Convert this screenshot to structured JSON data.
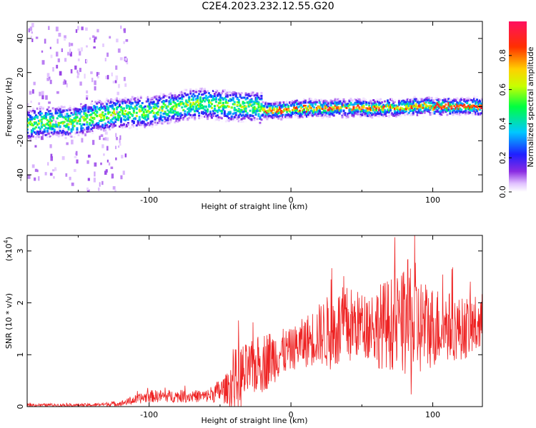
{
  "title": "C2E4.2023.232.12.55.G20",
  "colors": {
    "snr_line": "#ee2222",
    "axis": "#000000"
  },
  "chart_data": [
    {
      "type": "heatmap",
      "xlabel": "Height of straight line (km)",
      "ylabel": "Frequency (Hz)",
      "xlim": [
        -186,
        135
      ],
      "ylim": [
        -50,
        50
      ],
      "xticks": [
        "-100",
        "0",
        "100"
      ],
      "yticks": [
        "-40",
        "-20",
        "0",
        "20",
        "40"
      ],
      "colorbar": {
        "label": "Normalized spectral amplitude",
        "range": [
          0,
          1
        ],
        "ticks": [
          "0.0",
          "0.2",
          "0.4",
          "0.6",
          "0.8"
        ]
      },
      "ridge": {
        "x": [
          -186,
          -170,
          -155,
          -140,
          -120,
          -100,
          -85,
          -70,
          -60,
          -50,
          -40,
          -30,
          -22,
          -15,
          -5,
          5,
          20,
          40,
          60,
          80,
          100,
          120,
          135
        ],
        "y": [
          -10,
          -9,
          -9,
          -6,
          -4,
          -3,
          -1,
          1,
          2,
          1,
          0,
          1,
          -1,
          -2,
          -2,
          -1,
          -1,
          -1,
          -1,
          0,
          0,
          0,
          0
        ]
      }
    },
    {
      "type": "line",
      "name": "",
      "xlabel": "Height of straight line (km)",
      "ylabel": "SNR (10 * v/v)",
      "yscale_note": "(x10",
      "yscale_exp": "4",
      "xlim": [
        -186,
        135
      ],
      "ylim": [
        0,
        3.3
      ],
      "xticks": [
        "-100",
        "0",
        "100"
      ],
      "yticks": [
        "0",
        "1",
        "2",
        "3"
      ],
      "envelope": {
        "x": [
          -186,
          -160,
          -140,
          -120,
          -100,
          -90,
          -80,
          -60,
          -45,
          -40,
          -35,
          -30,
          -20,
          -10,
          0,
          10,
          20,
          30,
          40,
          50,
          60,
          70,
          80,
          85,
          90,
          100,
          110,
          120,
          130,
          135
        ],
        "mean": [
          0.03,
          0.03,
          0.03,
          0.06,
          0.2,
          0.2,
          0.2,
          0.2,
          0.35,
          0.5,
          0.55,
          0.7,
          0.85,
          1.0,
          1.1,
          1.25,
          1.4,
          1.45,
          1.55,
          1.6,
          1.55,
          1.6,
          1.6,
          1.6,
          1.55,
          1.55,
          1.55,
          1.5,
          1.55,
          1.6
        ],
        "amp": [
          0.03,
          0.03,
          0.03,
          0.05,
          0.12,
          0.12,
          0.12,
          0.12,
          0.3,
          0.6,
          0.7,
          0.5,
          0.6,
          0.5,
          0.4,
          0.5,
          0.6,
          0.8,
          0.8,
          0.6,
          0.8,
          0.9,
          1.0,
          1.5,
          1.0,
          0.8,
          0.7,
          0.6,
          0.6,
          0.6
        ]
      }
    }
  ]
}
